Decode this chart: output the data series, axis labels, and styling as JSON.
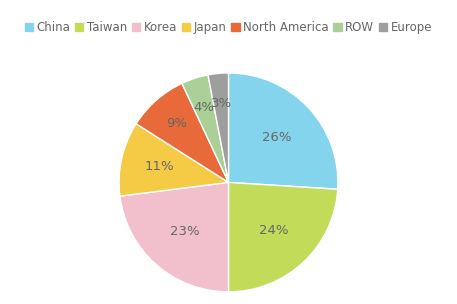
{
  "labels": [
    "China",
    "Taiwan",
    "Korea",
    "Japan",
    "North America",
    "ROW",
    "Europe"
  ],
  "values": [
    26,
    24,
    23,
    11,
    9,
    4,
    3
  ],
  "colors": [
    "#85D4EE",
    "#C2DC5A",
    "#F2BFCC",
    "#F5CA45",
    "#E8693A",
    "#AACF97",
    "#9E9E9E"
  ],
  "text_color": "#666666",
  "background_color": "#FFFFFF",
  "legend_fontsize": 8.5,
  "label_fontsize": 9.5,
  "startangle": 90
}
